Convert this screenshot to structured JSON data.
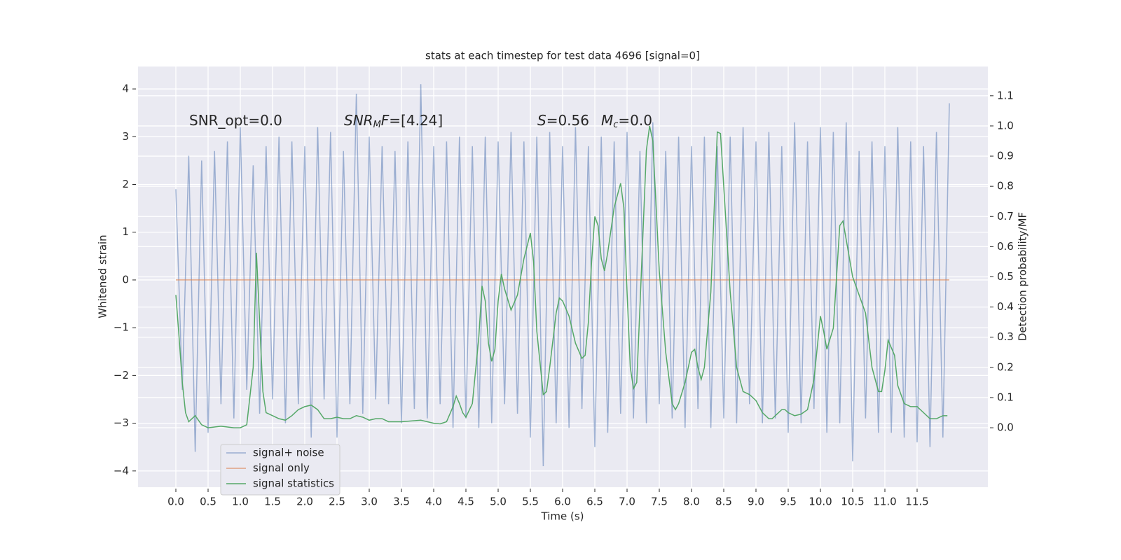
{
  "chart_data": {
    "type": "line",
    "title": "stats at each timestep for test data 4696 [signal=0]",
    "xlabel": "Time (s)",
    "ylabel": "Whitened strain",
    "y2label": "Detection probability/MF",
    "xlim": [
      -0.587,
      12.598
    ],
    "ylim": [
      -4.34,
      4.47
    ],
    "y2lim": [
      -0.197,
      1.197
    ],
    "xticks": [
      {
        "value": 0,
        "label": "0.0"
      },
      0.5,
      {
        "value": 1,
        "label": "1.0"
      },
      1.5,
      {
        "value": 2,
        "label": "2.0"
      },
      2.5,
      {
        "value": 3,
        "label": "3.0"
      },
      3.5,
      {
        "value": 4,
        "label": "4.0"
      },
      4.5,
      {
        "value": 5,
        "label": "5.0"
      },
      5.5,
      {
        "value": 6,
        "label": "6.0"
      },
      6.5,
      {
        "value": 7,
        "label": "7.0"
      },
      7.5,
      {
        "value": 8,
        "label": "8.0"
      },
      8.5,
      {
        "value": 9,
        "label": "9.0"
      },
      9.5,
      {
        "value": 10,
        "label": "10.0"
      },
      10.5,
      {
        "value": 11,
        "label": "11.0"
      },
      11.5
    ],
    "yticks": [
      {
        "value": -4,
        "label": "−4"
      },
      {
        "value": -3,
        "label": "−3"
      },
      {
        "value": -2,
        "label": "−2"
      },
      {
        "value": -1,
        "label": "−1"
      },
      0,
      1,
      2,
      3,
      4
    ],
    "y2ticks": [
      {
        "value": 0,
        "label": "0.0"
      },
      0.1,
      0.2,
      0.3,
      0.4,
      0.5,
      0.6,
      0.7,
      0.8,
      0.9,
      {
        "value": 1,
        "label": "1.0"
      },
      1.1
    ],
    "grid": true,
    "legend": "lower left",
    "annotations": [
      [
        {
          "text": "SNR_opt=0.0",
          "style": "normal"
        }
      ],
      [
        {
          "text": "SNR",
          "style": "italic"
        },
        {
          "text": "M",
          "style": "sub"
        },
        {
          "text": "F",
          "style": "italic"
        },
        {
          "text": "=[4.24]",
          "style": "normal"
        }
      ],
      [
        {
          "text": "S",
          "style": "italic"
        },
        {
          "text": "=0.56",
          "style": "normal"
        }
      ],
      [
        {
          "text": "M",
          "style": "italic"
        },
        {
          "text": "c",
          "style": "sub"
        },
        {
          "text": "=0.0",
          "style": "normal"
        }
      ]
    ],
    "series": [
      {
        "name": "signal+ noise",
        "color": "#4c72b0",
        "opacity": 0.5,
        "x": [
          0,
          0.1,
          0.2,
          0.3,
          0.4,
          0.5,
          0.6,
          0.7,
          0.8,
          0.9,
          1,
          1.1,
          1.2,
          1.3,
          1.4,
          1.5,
          1.6,
          1.7,
          1.8,
          1.9,
          2,
          2.1,
          2.2,
          2.3,
          2.4,
          2.5,
          2.6,
          2.7,
          2.8,
          2.9,
          3,
          3.1,
          3.2,
          3.3,
          3.4,
          3.5,
          3.6,
          3.7,
          3.8,
          3.9,
          4,
          4.1,
          4.2,
          4.3,
          4.4,
          4.5,
          4.6,
          4.7,
          4.8,
          4.9,
          5,
          5.1,
          5.2,
          5.3,
          5.4,
          5.5,
          5.6,
          5.7,
          5.8,
          5.9,
          6,
          6.1,
          6.2,
          6.3,
          6.4,
          6.5,
          6.6,
          6.7,
          6.8,
          6.9,
          7,
          7.1,
          7.2,
          7.3,
          7.4,
          7.5,
          7.6,
          7.7,
          7.8,
          7.9,
          8,
          8.1,
          8.2,
          8.3,
          8.4,
          8.5,
          8.6,
          8.7,
          8.8,
          8.9,
          9,
          9.1,
          9.2,
          9.3,
          9.4,
          9.5,
          9.6,
          9.7,
          9.8,
          9.9,
          10,
          10.1,
          10.2,
          10.3,
          10.4,
          10.5,
          10.6,
          10.7,
          10.8,
          10.9,
          11,
          11.1,
          11.2,
          11.3,
          11.4,
          11.5,
          11.6,
          11.7,
          11.8,
          11.9,
          12
        ],
        "values": [
          1.9,
          -2.3,
          2.6,
          -3.6,
          2.5,
          -3.2,
          2.7,
          -2.6,
          2.9,
          -2.9,
          3.2,
          -2.3,
          2.4,
          -2.8,
          2.8,
          -2.5,
          3.0,
          -3.0,
          2.9,
          -2.6,
          2.8,
          -3.3,
          3.2,
          -2.5,
          3.1,
          -3.3,
          2.7,
          -2.6,
          3.9,
          -2.8,
          3.0,
          -2.5,
          2.8,
          -2.6,
          2.7,
          -3.0,
          2.9,
          -2.7,
          4.1,
          -2.9,
          2.8,
          -2.6,
          2.9,
          -3.1,
          3.0,
          -2.9,
          2.8,
          -3.1,
          3.0,
          -3.0,
          2.9,
          -2.6,
          3.1,
          -2.8,
          2.9,
          -3.3,
          3.0,
          -3.9,
          3.1,
          -3.0,
          2.8,
          -3.1,
          3.2,
          -2.7,
          2.8,
          -3.5,
          3.0,
          -3.2,
          2.9,
          -2.8,
          3.1,
          -2.9,
          2.7,
          -3.0,
          3.3,
          -2.6,
          2.7,
          -2.9,
          3.0,
          -3.1,
          2.8,
          -2.7,
          3.0,
          -3.1,
          2.8,
          -2.9,
          3.0,
          -3.0,
          3.2,
          -2.6,
          2.9,
          -3.0,
          3.1,
          -2.9,
          2.8,
          -3.2,
          3.3,
          -3.0,
          2.9,
          -2.7,
          3.2,
          -3.2,
          3.1,
          -3.0,
          3.3,
          -3.8,
          2.7,
          -2.9,
          2.9,
          -3.2,
          2.8,
          -3.2,
          3.2,
          -3.3,
          2.9,
          -3.4,
          2.8,
          -3.5,
          3.1,
          -3.3,
          3.7
        ]
      },
      {
        "name": "signal only",
        "color": "#dd8452",
        "opacity": 0.7,
        "x": [
          0,
          12
        ],
        "values": [
          0,
          0
        ]
      },
      {
        "name": "signal statistics",
        "color": "#55a868",
        "opacity": 1,
        "axis": "y2",
        "x": [
          0,
          0.05,
          0.1,
          0.15,
          0.2,
          0.3,
          0.4,
          0.5,
          0.7,
          0.9,
          1,
          1.1,
          1.2,
          1.25,
          1.3,
          1.35,
          1.4,
          1.5,
          1.6,
          1.7,
          1.8,
          1.9,
          2,
          2.1,
          2.2,
          2.3,
          2.4,
          2.5,
          2.6,
          2.7,
          2.8,
          2.9,
          3,
          3.1,
          3.2,
          3.3,
          3.5,
          3.8,
          4,
          4.1,
          4.2,
          4.3,
          4.35,
          4.4,
          4.45,
          4.5,
          4.6,
          4.7,
          4.75,
          4.8,
          4.85,
          4.9,
          4.95,
          5,
          5.05,
          5.1,
          5.2,
          5.3,
          5.4,
          5.5,
          5.55,
          5.6,
          5.7,
          5.75,
          5.8,
          5.9,
          5.95,
          6,
          6.1,
          6.2,
          6.3,
          6.35,
          6.4,
          6.45,
          6.5,
          6.55,
          6.6,
          6.65,
          6.7,
          6.8,
          6.9,
          6.95,
          7,
          7.05,
          7.1,
          7.15,
          7.2,
          7.3,
          7.35,
          7.4,
          7.5,
          7.6,
          7.7,
          7.75,
          7.8,
          7.9,
          8,
          8.05,
          8.1,
          8.15,
          8.2,
          8.3,
          8.4,
          8.45,
          8.5,
          8.6,
          8.7,
          8.8,
          8.9,
          9,
          9.1,
          9.2,
          9.25,
          9.3,
          9.4,
          9.45,
          9.5,
          9.6,
          9.7,
          9.8,
          9.9,
          10,
          10.05,
          10.1,
          10.2,
          10.3,
          10.35,
          10.5,
          10.7,
          10.8,
          10.9,
          10.95,
          11,
          11.05,
          11.15,
          11.2,
          11.3,
          11.4,
          11.5,
          11.6,
          11.7,
          11.8,
          11.9,
          11.97
        ],
        "values": [
          0.44,
          0.3,
          0.15,
          0.05,
          0.02,
          0.04,
          0.01,
          0,
          0.005,
          0,
          0,
          0.01,
          0.2,
          0.58,
          0.35,
          0.12,
          0.05,
          0.04,
          0.03,
          0.025,
          0.04,
          0.06,
          0.07,
          0.075,
          0.06,
          0.03,
          0.03,
          0.035,
          0.03,
          0.03,
          0.04,
          0.035,
          0.025,
          0.03,
          0.03,
          0.02,
          0.02,
          0.025,
          0.015,
          0.013,
          0.02,
          0.07,
          0.105,
          0.08,
          0.05,
          0.035,
          0.08,
          0.3,
          0.47,
          0.42,
          0.28,
          0.22,
          0.26,
          0.42,
          0.51,
          0.46,
          0.39,
          0.44,
          0.56,
          0.645,
          0.55,
          0.32,
          0.11,
          0.12,
          0.2,
          0.38,
          0.43,
          0.42,
          0.37,
          0.28,
          0.23,
          0.24,
          0.35,
          0.55,
          0.7,
          0.67,
          0.56,
          0.52,
          0.58,
          0.73,
          0.81,
          0.73,
          0.45,
          0.2,
          0.13,
          0.15,
          0.4,
          0.92,
          1,
          0.95,
          0.52,
          0.25,
          0.08,
          0.06,
          0.08,
          0.15,
          0.25,
          0.26,
          0.2,
          0.16,
          0.2,
          0.45,
          0.98,
          0.975,
          0.8,
          0.45,
          0.2,
          0.12,
          0.11,
          0.09,
          0.05,
          0.03,
          0.03,
          0.04,
          0.06,
          0.06,
          0.05,
          0.04,
          0.045,
          0.06,
          0.16,
          0.37,
          0.32,
          0.26,
          0.33,
          0.67,
          0.685,
          0.5,
          0.38,
          0.2,
          0.12,
          0.12,
          0.19,
          0.29,
          0.24,
          0.14,
          0.08,
          0.07,
          0.07,
          0.05,
          0.03,
          0.03,
          0.04,
          0.04
        ]
      }
    ]
  }
}
